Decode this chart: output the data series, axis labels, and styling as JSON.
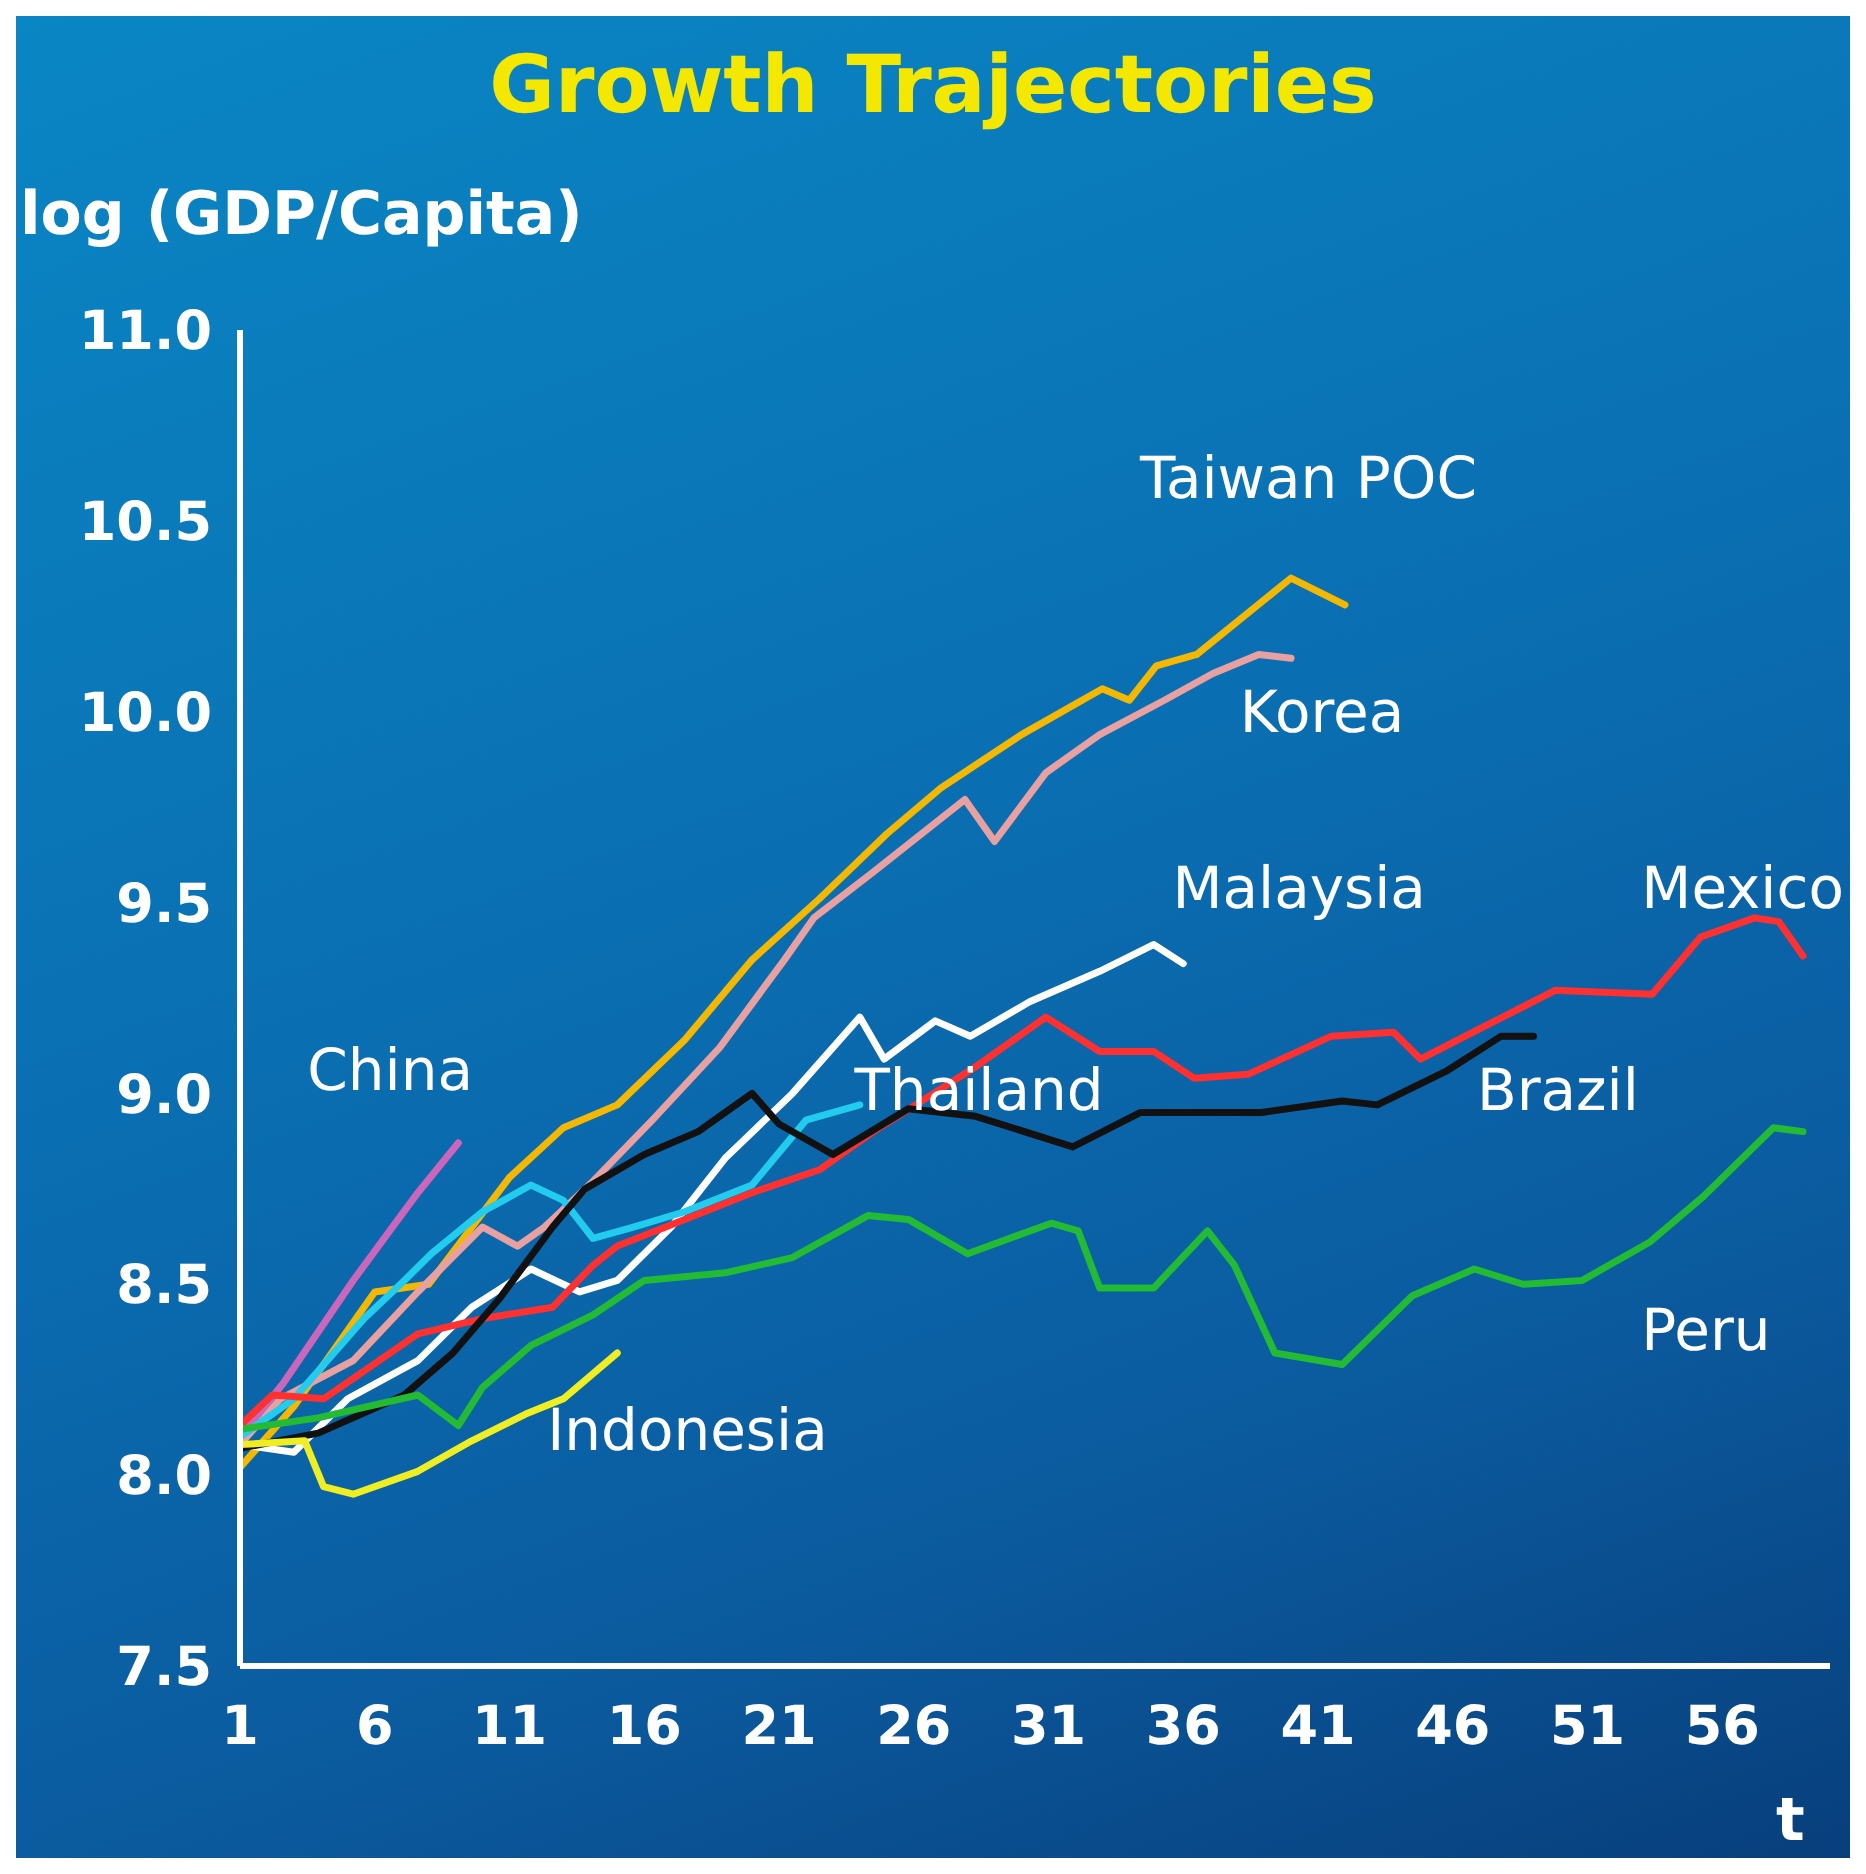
{
  "chart_data": {
    "type": "line",
    "title": "Growth Trajectories",
    "ylabel": "log (GDP/Capita)",
    "xlabel": "t",
    "xlim": [
      1,
      60
    ],
    "xticks": [
      1,
      6,
      11,
      16,
      21,
      26,
      31,
      36,
      41,
      46,
      51,
      56
    ],
    "ylim": [
      7.5,
      11
    ],
    "yticks": [
      7.5,
      {
        "value": 8,
        "label": "8.0"
      },
      8.5,
      {
        "value": 9,
        "label": "9.0"
      },
      9.5,
      {
        "value": 10,
        "label": "10.0"
      },
      10.5,
      {
        "value": 11,
        "label": "11.0"
      }
    ],
    "grid": false,
    "legend": false,
    "marker": "none",
    "line_style": "solid",
    "series": [
      {
        "name": "Taiwan POC",
        "color": "#f5b800",
        "x": [
          1,
          3,
          6,
          8,
          11,
          13,
          15,
          17.5,
          20,
          22.5,
          25,
          27,
          30,
          33,
          34,
          35,
          36.5,
          40,
          42
        ],
        "values": [
          8.02,
          8.18,
          8.48,
          8.5,
          8.78,
          8.91,
          8.97,
          9.14,
          9.35,
          9.51,
          9.68,
          9.8,
          9.94,
          10.06,
          10.03,
          10.12,
          10.15,
          10.35,
          10.28
        ]
      },
      {
        "name": "Korea",
        "color": "#e8a0a0",
        "x": [
          1,
          2.5,
          5.2,
          7.6,
          10,
          11.3,
          12.3,
          14.1,
          16.3,
          18.8,
          21.2,
          22.3,
          24.5,
          27.9,
          29,
          30.9,
          32.9,
          35.3,
          37.1,
          38.8,
          40
        ],
        "values": [
          8.08,
          8.2,
          8.3,
          8.48,
          8.65,
          8.6,
          8.65,
          8.77,
          8.93,
          9.12,
          9.35,
          9.46,
          9.58,
          9.77,
          9.66,
          9.84,
          9.94,
          10.03,
          10.1,
          10.15,
          10.14
        ]
      },
      {
        "name": "China",
        "color": "#cc66bb",
        "x": [
          1,
          2.6,
          5.2,
          7.6,
          9.1
        ],
        "values": [
          8.1,
          8.24,
          8.51,
          8.74,
          8.87
        ]
      },
      {
        "name": "Malaysia",
        "color": "#ffffff",
        "x": [
          1,
          3,
          5,
          7.6,
          9.6,
          11.8,
          13.6,
          15,
          17,
          19,
          21.5,
          24,
          24.9,
          26.8,
          28.1,
          30.3,
          32.9,
          34.9,
          36
        ],
        "values": [
          8.08,
          8.06,
          8.2,
          8.3,
          8.44,
          8.54,
          8.48,
          8.51,
          8.65,
          8.83,
          9.0,
          9.2,
          9.09,
          9.19,
          9.15,
          9.24,
          9.32,
          9.39,
          9.34
        ]
      },
      {
        "name": "Thailand",
        "color": "#22ccee",
        "x": [
          1,
          3,
          5.6,
          7.1,
          8.1,
          10,
          11.8,
          13,
          14.1,
          15.6,
          17.5,
          20,
          22,
          24
        ],
        "values": [
          8.1,
          8.2,
          8.41,
          8.51,
          8.58,
          8.69,
          8.76,
          8.72,
          8.62,
          8.65,
          8.69,
          8.76,
          8.93,
          8.97
        ]
      },
      {
        "name": "Mexico",
        "color": "#ff3030",
        "x": [
          1,
          2.2,
          4.1,
          7.6,
          10,
          12.6,
          14.1,
          15,
          17.5,
          20,
          22.5,
          24.5,
          28.3,
          30.9,
          32.9,
          34.9,
          36.4,
          38.4,
          41.5,
          43.8,
          44.8,
          47.3,
          49.8,
          53.4,
          55.2,
          57.2,
          58.1,
          59
        ],
        "values": [
          8.13,
          8.21,
          8.2,
          8.37,
          8.41,
          8.44,
          8.55,
          8.6,
          8.67,
          8.74,
          8.8,
          8.9,
          9.07,
          9.2,
          9.11,
          9.11,
          9.04,
          9.05,
          9.15,
          9.16,
          9.09,
          9.18,
          9.27,
          9.26,
          9.41,
          9.46,
          9.45,
          9.36
        ]
      },
      {
        "name": "Brazil",
        "color": "#111111",
        "x": [
          1,
          3.9,
          7.1,
          8.9,
          10.6,
          12.6,
          13.8,
          16,
          18,
          20,
          21,
          23,
          25.8,
          28.3,
          31.9,
          34.4,
          38.9,
          41.9,
          43.2,
          45.8,
          47.8,
          49
        ],
        "values": [
          8.07,
          8.11,
          8.21,
          8.32,
          8.46,
          8.65,
          8.75,
          8.84,
          8.9,
          9.0,
          8.92,
          8.84,
          8.96,
          8.94,
          8.86,
          8.95,
          8.95,
          8.98,
          8.97,
          9.06,
          9.15,
          9.15
        ]
      },
      {
        "name": "Peru",
        "color": "#22bb33",
        "x": [
          1,
          3.9,
          7.6,
          9.1,
          10,
          11.8,
          14.1,
          16,
          19,
          21.5,
          24.3,
          25.8,
          28,
          31.1,
          32.1,
          32.9,
          34.9,
          36.9,
          37.9,
          39.4,
          41.9,
          44.5,
          46.8,
          48.6,
          50.8,
          53.3,
          55.3,
          57.9,
          59
        ],
        "values": [
          8.12,
          8.15,
          8.21,
          8.13,
          8.23,
          8.34,
          8.42,
          8.51,
          8.53,
          8.57,
          8.68,
          8.67,
          8.58,
          8.66,
          8.64,
          8.49,
          8.49,
          8.64,
          8.55,
          8.32,
          8.29,
          8.47,
          8.54,
          8.5,
          8.51,
          8.61,
          8.73,
          8.91,
          8.9
        ]
      },
      {
        "name": "Indonesia",
        "color": "#eeee22",
        "x": [
          1,
          3.4,
          4.1,
          5.2,
          7.6,
          9.6,
          11.6,
          13,
          15
        ],
        "values": [
          8.08,
          8.09,
          7.97,
          7.95,
          8.01,
          8.09,
          8.16,
          8.2,
          8.32
        ]
      }
    ]
  }
}
